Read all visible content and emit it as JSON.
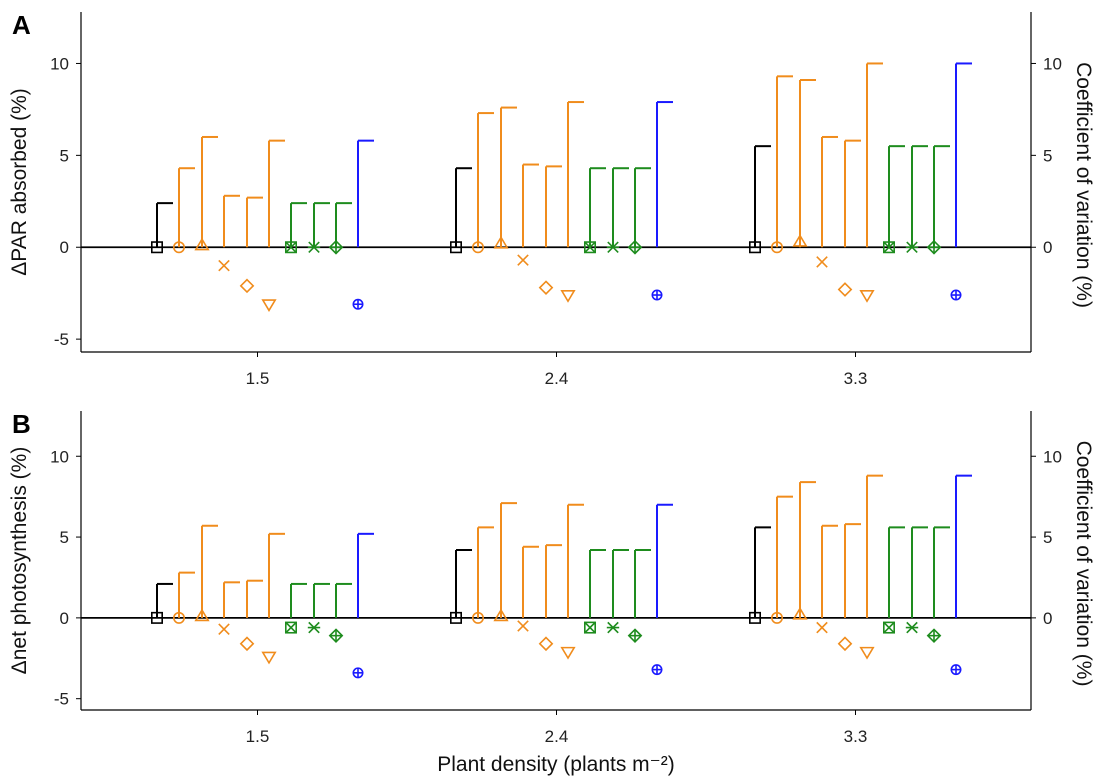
{
  "chart_data": [
    {
      "type": "scatter",
      "panel_label": "A",
      "ylabel_left": "ΔPAR absorbed (%)",
      "ylabel_right": "Coefficient of variation (%)",
      "xlabel": "",
      "categories": [
        "1.5",
        "2.4",
        "3.3"
      ],
      "ylim": [
        -5.7,
        12.8
      ],
      "yticks": [
        "-5",
        "0",
        "5",
        "10"
      ],
      "right_yticks": [
        "0",
        "5",
        "10"
      ],
      "grid": false,
      "series": [
        {
          "marker": "square",
          "color": "#000000",
          "delta": [
            0,
            0,
            0
          ],
          "cv": [
            2.4,
            4.3,
            5.5
          ]
        },
        {
          "marker": "circle",
          "color": "#f08c1c",
          "delta": [
            0,
            0,
            0
          ],
          "cv": [
            4.3,
            7.3,
            9.3
          ]
        },
        {
          "marker": "triangle-up",
          "color": "#f08c1c",
          "delta": [
            0.1,
            0.2,
            0.3
          ],
          "cv": [
            6.0,
            7.6,
            9.1
          ]
        },
        {
          "marker": "x",
          "color": "#f08c1c",
          "delta": [
            -1.0,
            -0.7,
            -0.8
          ],
          "cv": [
            2.8,
            4.5,
            6.0
          ]
        },
        {
          "marker": "diamond",
          "color": "#f08c1c",
          "delta": [
            -2.1,
            -2.2,
            -2.3
          ],
          "cv": [
            2.7,
            4.4,
            5.8
          ]
        },
        {
          "marker": "triangle-down",
          "color": "#f08c1c",
          "delta": [
            -3.1,
            -2.6,
            -2.6
          ],
          "cv": [
            5.8,
            7.9,
            10.0
          ]
        },
        {
          "marker": "square-x",
          "color": "#1e8c1e",
          "delta": [
            0,
            0,
            0
          ],
          "cv": [
            2.4,
            4.3,
            5.5
          ]
        },
        {
          "marker": "asterisk",
          "color": "#1e8c1e",
          "delta": [
            0,
            0,
            0
          ],
          "cv": [
            2.4,
            4.3,
            5.5
          ]
        },
        {
          "marker": "diamond-plus",
          "color": "#1e8c1e",
          "delta": [
            0,
            0,
            0
          ],
          "cv": [
            2.4,
            4.3,
            5.5
          ]
        },
        {
          "marker": "circle-plus",
          "color": "#1a1aff",
          "delta": [
            -3.1,
            -2.6,
            -2.6
          ],
          "cv": [
            5.8,
            7.9,
            10.0
          ]
        }
      ]
    },
    {
      "type": "scatter",
      "panel_label": "B",
      "ylabel_left": "Δnet photosynthesis (%)",
      "ylabel_right": "Coefficient of variation (%)",
      "xlabel": "Plant density (plants m⁻²)",
      "categories": [
        "1.5",
        "2.4",
        "3.3"
      ],
      "ylim": [
        -5.7,
        12.8
      ],
      "yticks": [
        "-5",
        "0",
        "5",
        "10"
      ],
      "right_yticks": [
        "0",
        "5",
        "10"
      ],
      "grid": false,
      "series": [
        {
          "marker": "square",
          "color": "#000000",
          "delta": [
            0,
            0,
            0
          ],
          "cv": [
            2.1,
            4.2,
            5.6
          ]
        },
        {
          "marker": "circle",
          "color": "#f08c1c",
          "delta": [
            0,
            0,
            0
          ],
          "cv": [
            2.8,
            5.6,
            7.5
          ]
        },
        {
          "marker": "triangle-up",
          "color": "#f08c1c",
          "delta": [
            0.1,
            0.1,
            0.2
          ],
          "cv": [
            5.7,
            7.1,
            8.4
          ]
        },
        {
          "marker": "x",
          "color": "#f08c1c",
          "delta": [
            -0.7,
            -0.5,
            -0.6
          ],
          "cv": [
            2.2,
            4.4,
            5.7
          ]
        },
        {
          "marker": "diamond",
          "color": "#f08c1c",
          "delta": [
            -1.6,
            -1.6,
            -1.6
          ],
          "cv": [
            2.3,
            4.5,
            5.8
          ]
        },
        {
          "marker": "triangle-down",
          "color": "#f08c1c",
          "delta": [
            -2.4,
            -2.1,
            -2.1
          ],
          "cv": [
            5.2,
            7.0,
            8.8
          ]
        },
        {
          "marker": "square-x",
          "color": "#1e8c1e",
          "delta": [
            -0.6,
            -0.6,
            -0.6
          ],
          "cv": [
            2.1,
            4.2,
            5.6
          ]
        },
        {
          "marker": "asterisk",
          "color": "#1e8c1e",
          "delta": [
            -0.6,
            -0.6,
            -0.6
          ],
          "cv": [
            2.1,
            4.2,
            5.6
          ]
        },
        {
          "marker": "diamond-plus",
          "color": "#1e8c1e",
          "delta": [
            -1.1,
            -1.1,
            -1.1
          ],
          "cv": [
            2.1,
            4.2,
            5.6
          ]
        },
        {
          "marker": "circle-plus",
          "color": "#1a1aff",
          "delta": [
            -3.4,
            -3.2,
            -3.2
          ],
          "cv": [
            5.2,
            7.0,
            8.8
          ]
        }
      ]
    }
  ]
}
